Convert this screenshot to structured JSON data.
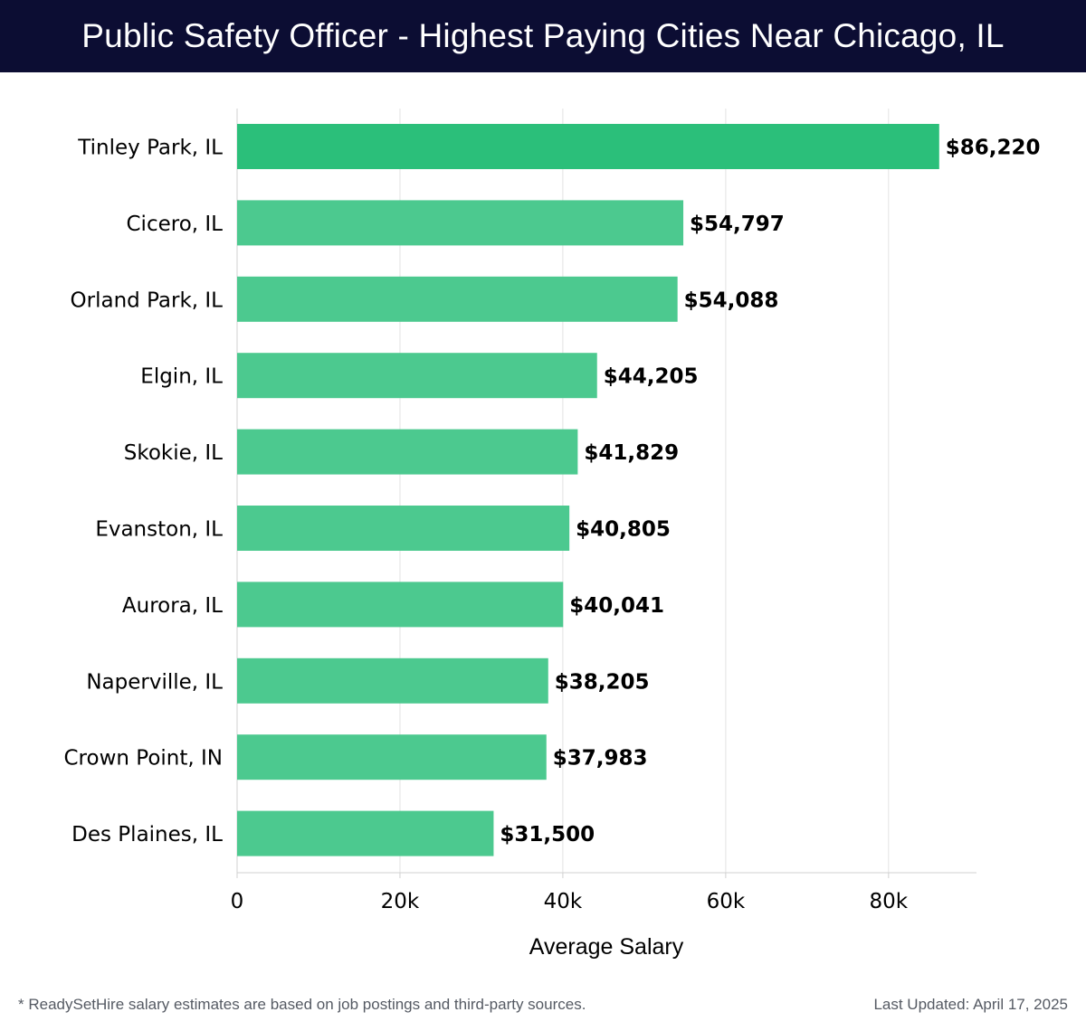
{
  "header": {
    "title": "Public Safety Officer - Highest Paying Cities Near Chicago, IL"
  },
  "chart_data": {
    "type": "bar",
    "orientation": "horizontal",
    "title": "Public Safety Officer - Highest Paying Cities Near Chicago, IL",
    "xlabel": "Average Salary",
    "ylabel": "",
    "categories": [
      "Tinley Park, IL",
      "Cicero, IL",
      "Orland Park, IL",
      "Elgin, IL",
      "Skokie, IL",
      "Evanston, IL",
      "Aurora, IL",
      "Naperville, IL",
      "Crown Point, IN",
      "Des Plaines, IL"
    ],
    "values": [
      86220,
      54797,
      54088,
      44205,
      41829,
      40805,
      40041,
      38205,
      37983,
      31500
    ],
    "value_labels": [
      "$86,220",
      "$54,797",
      "$54,088",
      "$44,205",
      "$41,829",
      "$40,805",
      "$40,041",
      "$38,205",
      "$37,983",
      "$31,500"
    ],
    "x_ticks": [
      0,
      20000,
      40000,
      60000,
      80000
    ],
    "x_tick_labels": [
      "0",
      "20k",
      "40k",
      "60k",
      "80k"
    ],
    "xlim": [
      0,
      90800
    ],
    "grid": "vertical",
    "colors": {
      "top_bar": "#2bbf7a",
      "bar": "#4cc98f",
      "grid": "#e3e3e3",
      "axis": "#d0d0d0",
      "text": "#000000"
    }
  },
  "footer": {
    "note": "* ReadySetHire salary estimates are based on job postings and third-party sources.",
    "updated": "Last Updated: April 17, 2025"
  }
}
